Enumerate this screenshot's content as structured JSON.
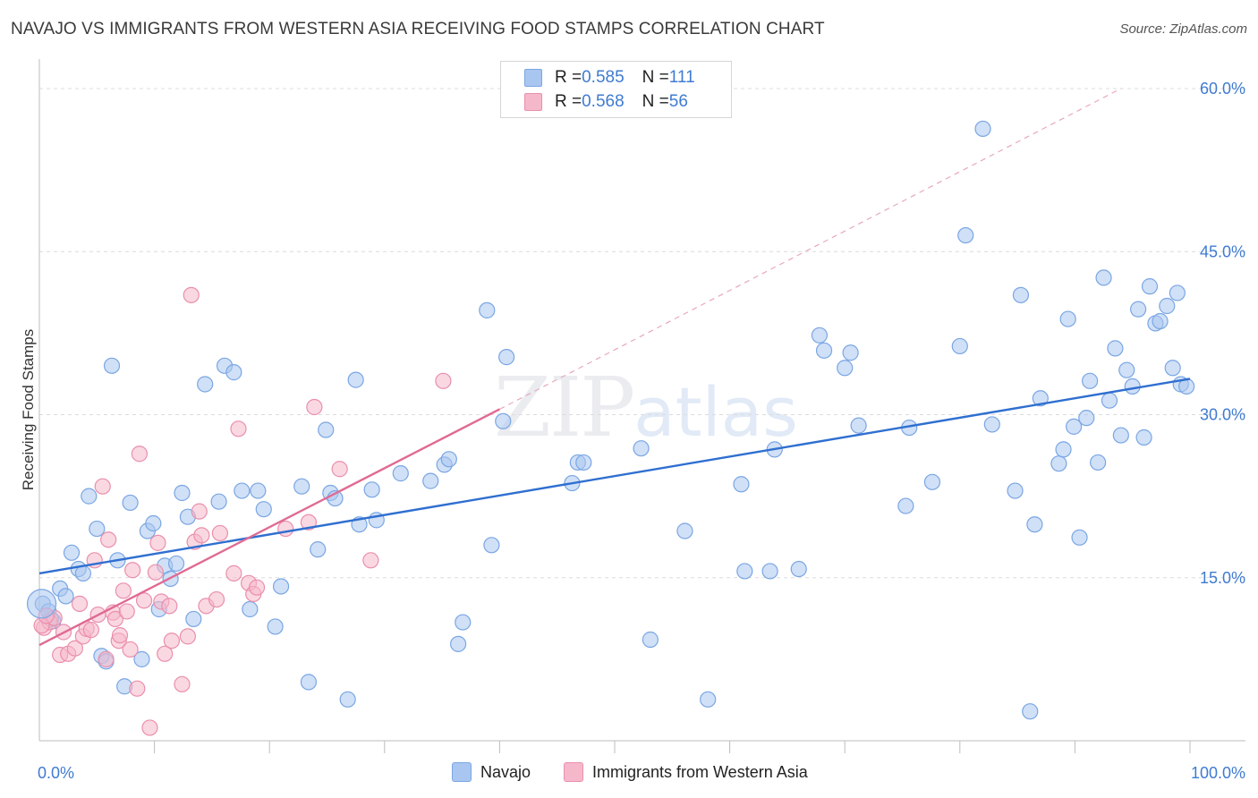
{
  "title": "NAVAJO VS IMMIGRANTS FROM WESTERN ASIA RECEIVING FOOD STAMPS CORRELATION CHART",
  "source": "Source: ZipAtlas.com",
  "watermark": {
    "zip": "ZIP",
    "atlas": "atlas"
  },
  "legend": {
    "rows": [
      {
        "r_label": "R = ",
        "r_value": "0.585",
        "n_label": "N = ",
        "n_value": "111",
        "color": "#a9c6f0"
      },
      {
        "r_label": "R = ",
        "r_value": "0.568",
        "n_label": "N = ",
        "n_value": "56",
        "color": "#f5b8cb"
      }
    ]
  },
  "chart_data": {
    "type": "scatter",
    "title": "NAVAJO VS IMMIGRANTS FROM WESTERN ASIA RECEIVING FOOD STAMPS CORRELATION CHART",
    "xlabel": "",
    "ylabel": "Receiving Food Stamps",
    "xlim": [
      0,
      100
    ],
    "ylim": [
      0,
      60
    ],
    "x_tick_labels": [
      "0.0%",
      "100.0%"
    ],
    "y_ticks": [
      15,
      30,
      45,
      60
    ],
    "y_tick_labels": [
      "15.0%",
      "30.0%",
      "45.0%",
      "60.0%"
    ],
    "grid": true,
    "legend_position": "top-center",
    "series": [
      {
        "name": "Navajo",
        "color": "#a9c6f0",
        "stroke": "#7aa6e3",
        "trend": {
          "x0": 0,
          "y0": 15.4,
          "x1": 100,
          "y1": 33.3,
          "color": "#2f6fd0",
          "dashed": false
        },
        "points": [
          [
            0.3,
            12.6
          ],
          [
            0.8,
            11.9
          ],
          [
            1.2,
            11.0
          ],
          [
            1.8,
            14.0
          ],
          [
            2.3,
            13.3
          ],
          [
            2.8,
            17.3
          ],
          [
            3.4,
            15.8
          ],
          [
            3.8,
            15.4
          ],
          [
            4.3,
            22.5
          ],
          [
            5.0,
            19.5
          ],
          [
            5.4,
            7.8
          ],
          [
            5.8,
            7.3
          ],
          [
            6.3,
            34.5
          ],
          [
            6.8,
            16.6
          ],
          [
            7.4,
            5.0
          ],
          [
            7.9,
            21.9
          ],
          [
            8.9,
            7.5
          ],
          [
            9.4,
            19.3
          ],
          [
            9.9,
            20.0
          ],
          [
            10.4,
            12.1
          ],
          [
            10.9,
            16.1
          ],
          [
            11.4,
            14.9
          ],
          [
            11.9,
            16.3
          ],
          [
            12.4,
            22.8
          ],
          [
            12.9,
            20.6
          ],
          [
            13.4,
            11.2
          ],
          [
            14.4,
            32.8
          ],
          [
            15.6,
            22.0
          ],
          [
            16.1,
            34.5
          ],
          [
            16.9,
            33.9
          ],
          [
            17.6,
            23.0
          ],
          [
            18.3,
            12.1
          ],
          [
            19.0,
            23.0
          ],
          [
            19.5,
            21.3
          ],
          [
            20.5,
            10.5
          ],
          [
            21.0,
            14.2
          ],
          [
            22.8,
            23.4
          ],
          [
            23.4,
            5.4
          ],
          [
            24.2,
            17.6
          ],
          [
            24.9,
            28.6
          ],
          [
            25.3,
            22.8
          ],
          [
            25.7,
            22.3
          ],
          [
            26.8,
            3.8
          ],
          [
            27.5,
            33.2
          ],
          [
            27.8,
            19.9
          ],
          [
            28.9,
            23.1
          ],
          [
            29.3,
            20.3
          ],
          [
            31.4,
            24.6
          ],
          [
            34.0,
            23.9
          ],
          [
            35.2,
            25.4
          ],
          [
            35.6,
            25.9
          ],
          [
            36.4,
            8.9
          ],
          [
            36.8,
            10.9
          ],
          [
            38.9,
            39.6
          ],
          [
            39.3,
            18.0
          ],
          [
            40.3,
            29.4
          ],
          [
            40.6,
            35.3
          ],
          [
            46.3,
            23.7
          ],
          [
            46.8,
            25.6
          ],
          [
            47.3,
            25.6
          ],
          [
            52.3,
            26.9
          ],
          [
            53.1,
            9.3
          ],
          [
            56.1,
            19.3
          ],
          [
            58.1,
            3.8
          ],
          [
            61.0,
            23.6
          ],
          [
            61.3,
            15.6
          ],
          [
            63.5,
            15.6
          ],
          [
            63.9,
            26.8
          ],
          [
            66.0,
            15.8
          ],
          [
            67.8,
            37.3
          ],
          [
            68.2,
            35.9
          ],
          [
            70.0,
            34.3
          ],
          [
            70.5,
            35.7
          ],
          [
            71.2,
            29.0
          ],
          [
            75.3,
            21.6
          ],
          [
            75.6,
            28.8
          ],
          [
            77.6,
            23.8
          ],
          [
            80.0,
            36.3
          ],
          [
            80.5,
            46.5
          ],
          [
            82.0,
            56.3
          ],
          [
            82.8,
            29.1
          ],
          [
            84.8,
            23.0
          ],
          [
            85.3,
            41.0
          ],
          [
            86.1,
            2.7
          ],
          [
            86.5,
            19.9
          ],
          [
            87.0,
            31.5
          ],
          [
            88.6,
            25.5
          ],
          [
            89.0,
            26.8
          ],
          [
            89.4,
            38.8
          ],
          [
            89.9,
            28.9
          ],
          [
            90.4,
            18.7
          ],
          [
            91.0,
            29.7
          ],
          [
            91.3,
            33.1
          ],
          [
            92.0,
            25.6
          ],
          [
            92.5,
            42.6
          ],
          [
            93.0,
            31.3
          ],
          [
            93.5,
            36.1
          ],
          [
            94.0,
            28.1
          ],
          [
            94.5,
            34.1
          ],
          [
            95.0,
            32.6
          ],
          [
            95.5,
            39.7
          ],
          [
            96.0,
            27.9
          ],
          [
            96.5,
            41.8
          ],
          [
            97.0,
            38.4
          ],
          [
            97.4,
            38.6
          ],
          [
            98.0,
            40.0
          ],
          [
            98.5,
            34.3
          ],
          [
            98.9,
            41.2
          ],
          [
            99.2,
            32.8
          ],
          [
            99.7,
            32.6
          ],
          [
            1.0,
            11.2
          ]
        ]
      },
      {
        "name": "Immigrants from Western Asia",
        "color": "#f5b8cb",
        "stroke": "#ea8fab",
        "trend": {
          "x0": 0,
          "y0": 8.8,
          "x1": 40,
          "y1": 30.5,
          "color": "#e06a93",
          "dashed": false
        },
        "trend_extension": {
          "x0": 40,
          "y0": 30.5,
          "x1": 94,
          "y1": 60,
          "color": "#e8a8bd",
          "dashed": true
        },
        "points": [
          [
            0.4,
            10.4
          ],
          [
            0.9,
            10.9
          ],
          [
            1.3,
            11.3
          ],
          [
            1.8,
            7.9
          ],
          [
            2.1,
            10.0
          ],
          [
            2.5,
            8.0
          ],
          [
            3.1,
            8.5
          ],
          [
            3.5,
            12.6
          ],
          [
            3.8,
            9.6
          ],
          [
            4.1,
            10.3
          ],
          [
            4.5,
            10.2
          ],
          [
            4.8,
            16.6
          ],
          [
            5.1,
            11.6
          ],
          [
            5.5,
            23.4
          ],
          [
            5.8,
            7.5
          ],
          [
            6.0,
            18.5
          ],
          [
            6.4,
            11.8
          ],
          [
            6.6,
            11.2
          ],
          [
            6.9,
            9.2
          ],
          [
            7.0,
            9.7
          ],
          [
            7.3,
            13.8
          ],
          [
            7.6,
            11.9
          ],
          [
            7.9,
            8.4
          ],
          [
            8.1,
            15.7
          ],
          [
            8.5,
            4.8
          ],
          [
            8.7,
            26.4
          ],
          [
            9.1,
            12.9
          ],
          [
            9.6,
            1.2
          ],
          [
            10.1,
            15.5
          ],
          [
            10.3,
            18.2
          ],
          [
            10.6,
            12.8
          ],
          [
            10.9,
            8.0
          ],
          [
            11.3,
            12.4
          ],
          [
            11.5,
            9.2
          ],
          [
            12.4,
            5.2
          ],
          [
            12.9,
            9.6
          ],
          [
            13.2,
            41.0
          ],
          [
            13.5,
            18.3
          ],
          [
            13.9,
            21.1
          ],
          [
            14.1,
            18.9
          ],
          [
            14.5,
            12.4
          ],
          [
            15.4,
            13.0
          ],
          [
            15.7,
            19.1
          ],
          [
            16.9,
            15.4
          ],
          [
            17.3,
            28.7
          ],
          [
            18.2,
            14.5
          ],
          [
            18.6,
            13.5
          ],
          [
            18.9,
            14.1
          ],
          [
            21.4,
            19.5
          ],
          [
            23.4,
            20.1
          ],
          [
            23.9,
            30.7
          ],
          [
            26.1,
            25.0
          ],
          [
            28.8,
            16.6
          ],
          [
            35.1,
            33.1
          ],
          [
            0.2,
            10.6
          ],
          [
            0.6,
            11.5
          ]
        ]
      }
    ]
  }
}
